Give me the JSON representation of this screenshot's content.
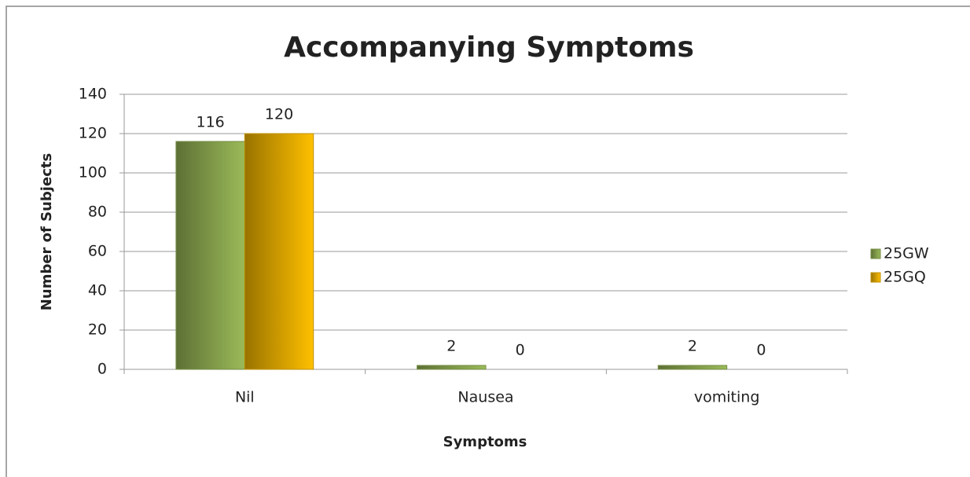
{
  "chart_data": {
    "type": "bar",
    "title": "Accompanying Symptoms",
    "x_label": "Symptoms",
    "y_label": "Number of Subjects",
    "categories": [
      "Nil",
      "Nausea",
      "vomiting"
    ],
    "series": [
      {
        "name": "25GW",
        "color": "#9bbb59",
        "values": [
          116,
          2,
          2
        ]
      },
      {
        "name": "25GQ",
        "color": "#ffc000",
        "values": [
          120,
          0,
          0
        ]
      }
    ],
    "ylim": [
      0,
      140
    ],
    "yticks": [
      0,
      20,
      40,
      60,
      80,
      100,
      120,
      140
    ],
    "grid": true,
    "legend": "right"
  }
}
